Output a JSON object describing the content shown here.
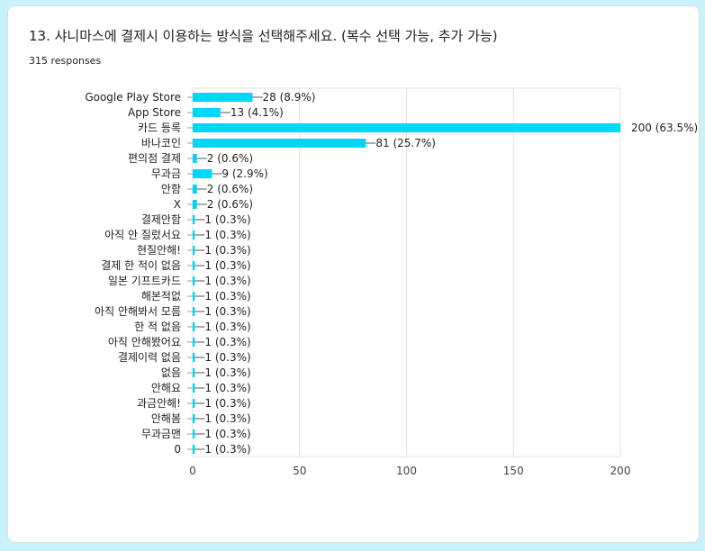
{
  "question": {
    "title": "13. 샤니마스에 결제시 이용하는 방식을 선택해주세요. (복수 선택 가능, 추가 가능)",
    "responses": "315 responses"
  },
  "colors": {
    "bar": "#00d6f5",
    "grid": "#e0e0e0",
    "background": "#c9f3fb"
  },
  "chart_data": {
    "type": "bar",
    "orientation": "horizontal",
    "title": "",
    "xlabel": "",
    "ylabel": "",
    "xlim": [
      0,
      200
    ],
    "xticks": [
      0,
      50,
      100,
      150,
      200
    ],
    "grid": true,
    "legend": "none",
    "categories": [
      "Google Play Store",
      "App Store",
      "카드 등록",
      "바나코인",
      "편의점 결제",
      "무과금",
      "안함",
      "X",
      "결제안함",
      "아직 안 질렀서요",
      "현질안해!",
      "결제 한 적이 없음",
      "일본 기프트카드",
      "해본적없",
      "아직 안해봐서 모름",
      "한 적 없음",
      "아직 안해봤어요",
      "결제이력 없음",
      "없음",
      "안해요",
      "과금안해!",
      "안해봄",
      "무과금맨",
      "0"
    ],
    "values": [
      28,
      13,
      200,
      81,
      2,
      9,
      2,
      2,
      1,
      1,
      1,
      1,
      1,
      1,
      1,
      1,
      1,
      1,
      1,
      1,
      1,
      1,
      1,
      1
    ],
    "labels": [
      "28 (8.9%)",
      "13 (4.1%)",
      "200 (63.5%)",
      "81 (25.7%)",
      "2 (0.6%)",
      "9 (2.9%)",
      "2 (0.6%)",
      "2 (0.6%)",
      "1 (0.3%)",
      "1 (0.3%)",
      "1 (0.3%)",
      "1 (0.3%)",
      "1 (0.3%)",
      "1 (0.3%)",
      "1 (0.3%)",
      "1 (0.3%)",
      "1 (0.3%)",
      "1 (0.3%)",
      "1 (0.3%)",
      "1 (0.3%)",
      "1 (0.3%)",
      "1 (0.3%)",
      "1 (0.3%)",
      "1 (0.3%)"
    ]
  }
}
